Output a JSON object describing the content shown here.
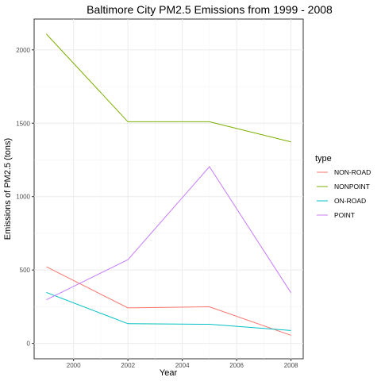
{
  "chart_data": {
    "type": "line",
    "title": "Baltimore City PM2.5 Emissions from 1999 - 2008",
    "xlabel": "Year",
    "ylabel": "Emissions of PM2.5 (tons)",
    "x": [
      1999,
      2002,
      2005,
      2008
    ],
    "xlim": [
      1998.55,
      2008.45
    ],
    "ylim": [
      -105,
      2210
    ],
    "x_ticks": [
      2000,
      2002,
      2004,
      2006,
      2008
    ],
    "y_ticks": [
      0,
      500,
      1000,
      1500,
      2000
    ],
    "grid": true,
    "legend": {
      "title": "type",
      "position": "right"
    },
    "series": [
      {
        "name": "NON-ROAD",
        "color": "#F8766D",
        "values": [
          522,
          242,
          249,
          55
        ]
      },
      {
        "name": "NONPOINT",
        "color": "#7CAE00",
        "values": [
          2108,
          1510,
          1510,
          1373
        ]
      },
      {
        "name": "ON-ROAD",
        "color": "#00BFC4",
        "values": [
          347,
          134,
          130,
          88
        ]
      },
      {
        "name": "POINT",
        "color": "#C77CFF",
        "values": [
          297,
          570,
          1204,
          345
        ]
      }
    ]
  }
}
